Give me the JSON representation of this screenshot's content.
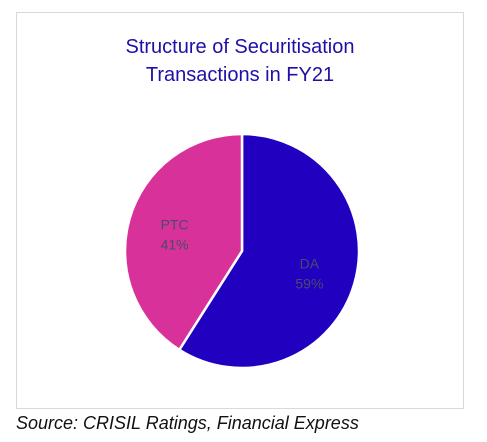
{
  "chart_data": {
    "type": "pie",
    "title_lines": [
      "Structure of Securitisation",
      "Transactions in FY21"
    ],
    "slices": [
      {
        "label": "DA",
        "percent_label": "59%",
        "value": 59,
        "color": "#2200c0"
      },
      {
        "label": "PTC",
        "percent_label": "41%",
        "value": 41,
        "color": "#d8329a"
      }
    ]
  },
  "source": "Source: CRISIL Ratings, Financial Express",
  "colors": {
    "title": "#1f0fa8",
    "label": "#4a4a6a",
    "slice_border": "#ffffff"
  }
}
